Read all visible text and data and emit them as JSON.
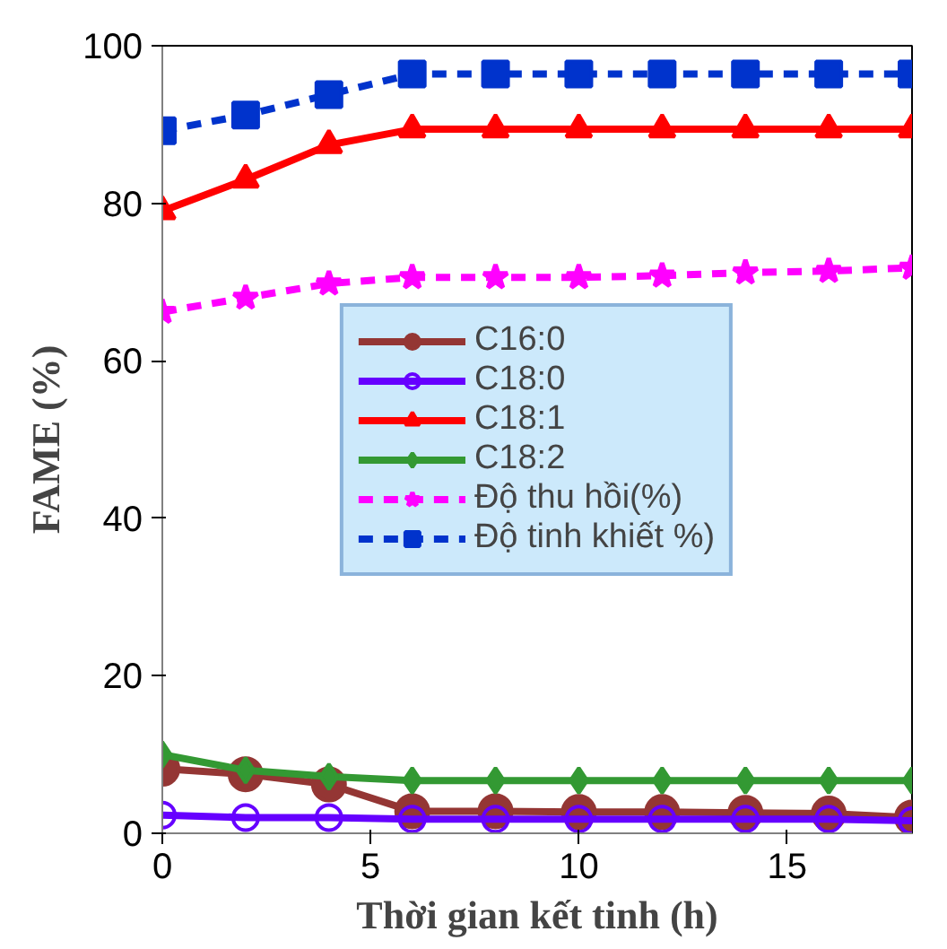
{
  "chart_data": {
    "type": "line",
    "xlabel": "Thời gian kết tinh (h)",
    "ylabel": "FAME (%)",
    "x": [
      0,
      2,
      4,
      6,
      8,
      10,
      12,
      14,
      16,
      18
    ],
    "xlim": [
      0,
      18
    ],
    "xticks": [
      0,
      5,
      10,
      15
    ],
    "ylim": [
      0,
      100
    ],
    "yticks": [
      0,
      20,
      40,
      60,
      80,
      100
    ],
    "grid": false,
    "legend": "center",
    "series": [
      {
        "name": "C16:0",
        "color": "#943634",
        "marker": "circle",
        "line_style": "solid",
        "values": [
          8.2,
          7.5,
          6.2,
          2.8,
          2.8,
          2.7,
          2.7,
          2.6,
          2.5,
          2.0
        ]
      },
      {
        "name": "C18:0",
        "color": "#6600ff",
        "marker": "circle",
        "line_style": "solid",
        "values": [
          2.3,
          2.0,
          2.0,
          1.8,
          1.8,
          1.8,
          1.8,
          1.8,
          1.8,
          1.6
        ]
      },
      {
        "name": "C18:1",
        "color": "#ff0000",
        "marker": "triangle",
        "line_style": "solid",
        "values": [
          79,
          83,
          87.4,
          89.4,
          89.4,
          89.4,
          89.4,
          89.4,
          89.4,
          89.4
        ]
      },
      {
        "name": "C18:2",
        "color": "#339933",
        "marker": "diamond",
        "line_style": "solid",
        "values": [
          10,
          8,
          7.2,
          6.7,
          6.7,
          6.7,
          6.7,
          6.7,
          6.7,
          6.7
        ]
      },
      {
        "name": "Độ thu hồi(%)",
        "color": "#ff00ff",
        "marker": "star",
        "line_style": "dashed",
        "values": [
          66.2,
          68,
          69.8,
          70.6,
          70.6,
          70.6,
          70.8,
          71.2,
          71.4,
          71.8
        ]
      },
      {
        "name": "Độ tinh khiết %)",
        "color": "#0033cc",
        "marker": "square",
        "line_style": "dashed",
        "values": [
          89.2,
          91.2,
          93.8,
          96.4,
          96.4,
          96.4,
          96.4,
          96.4,
          96.4,
          96.4
        ]
      }
    ]
  }
}
